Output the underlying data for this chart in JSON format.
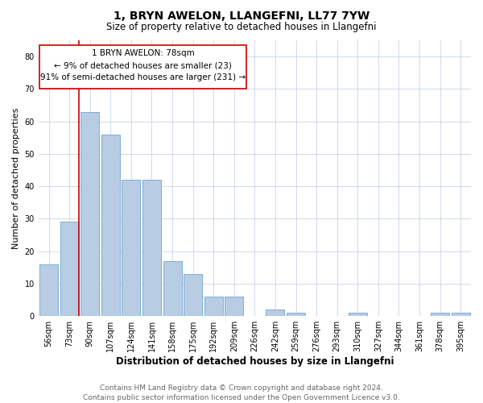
{
  "title": "1, BRYN AWELON, LLANGEFNI, LL77 7YW",
  "subtitle": "Size of property relative to detached houses in Llangefni",
  "xlabel": "Distribution of detached houses by size in Llangefni",
  "ylabel": "Number of detached properties",
  "footer_line1": "Contains HM Land Registry data © Crown copyright and database right 2024.",
  "footer_line2": "Contains public sector information licensed under the Open Government Licence v3.0.",
  "annotation_line1": "1 BRYN AWELON: 78sqm",
  "annotation_line2": "← 9% of detached houses are smaller (23)",
  "annotation_line3": "91% of semi-detached houses are larger (231) →",
  "categories": [
    "56sqm",
    "73sqm",
    "90sqm",
    "107sqm",
    "124sqm",
    "141sqm",
    "158sqm",
    "175sqm",
    "192sqm",
    "209sqm",
    "226sqm",
    "242sqm",
    "259sqm",
    "276sqm",
    "293sqm",
    "310sqm",
    "327sqm",
    "344sqm",
    "361sqm",
    "378sqm",
    "395sqm"
  ],
  "values": [
    16,
    29,
    63,
    56,
    42,
    42,
    17,
    13,
    6,
    6,
    0,
    2,
    1,
    0,
    0,
    1,
    0,
    0,
    0,
    1,
    1
  ],
  "bar_color": "#b8cce4",
  "bar_edge_color": "#7bafd4",
  "red_line_color": "#cc0000",
  "annotation_box_color": "#cc0000",
  "background_color": "#ffffff",
  "grid_color": "#c8d4e8",
  "ylim": [
    0,
    85
  ],
  "yticks": [
    0,
    10,
    20,
    30,
    40,
    50,
    60,
    70,
    80
  ],
  "title_fontsize": 10,
  "subtitle_fontsize": 8.5,
  "xlabel_fontsize": 8.5,
  "ylabel_fontsize": 8,
  "tick_fontsize": 7,
  "annotation_fontsize": 7.5,
  "footer_fontsize": 6.5
}
